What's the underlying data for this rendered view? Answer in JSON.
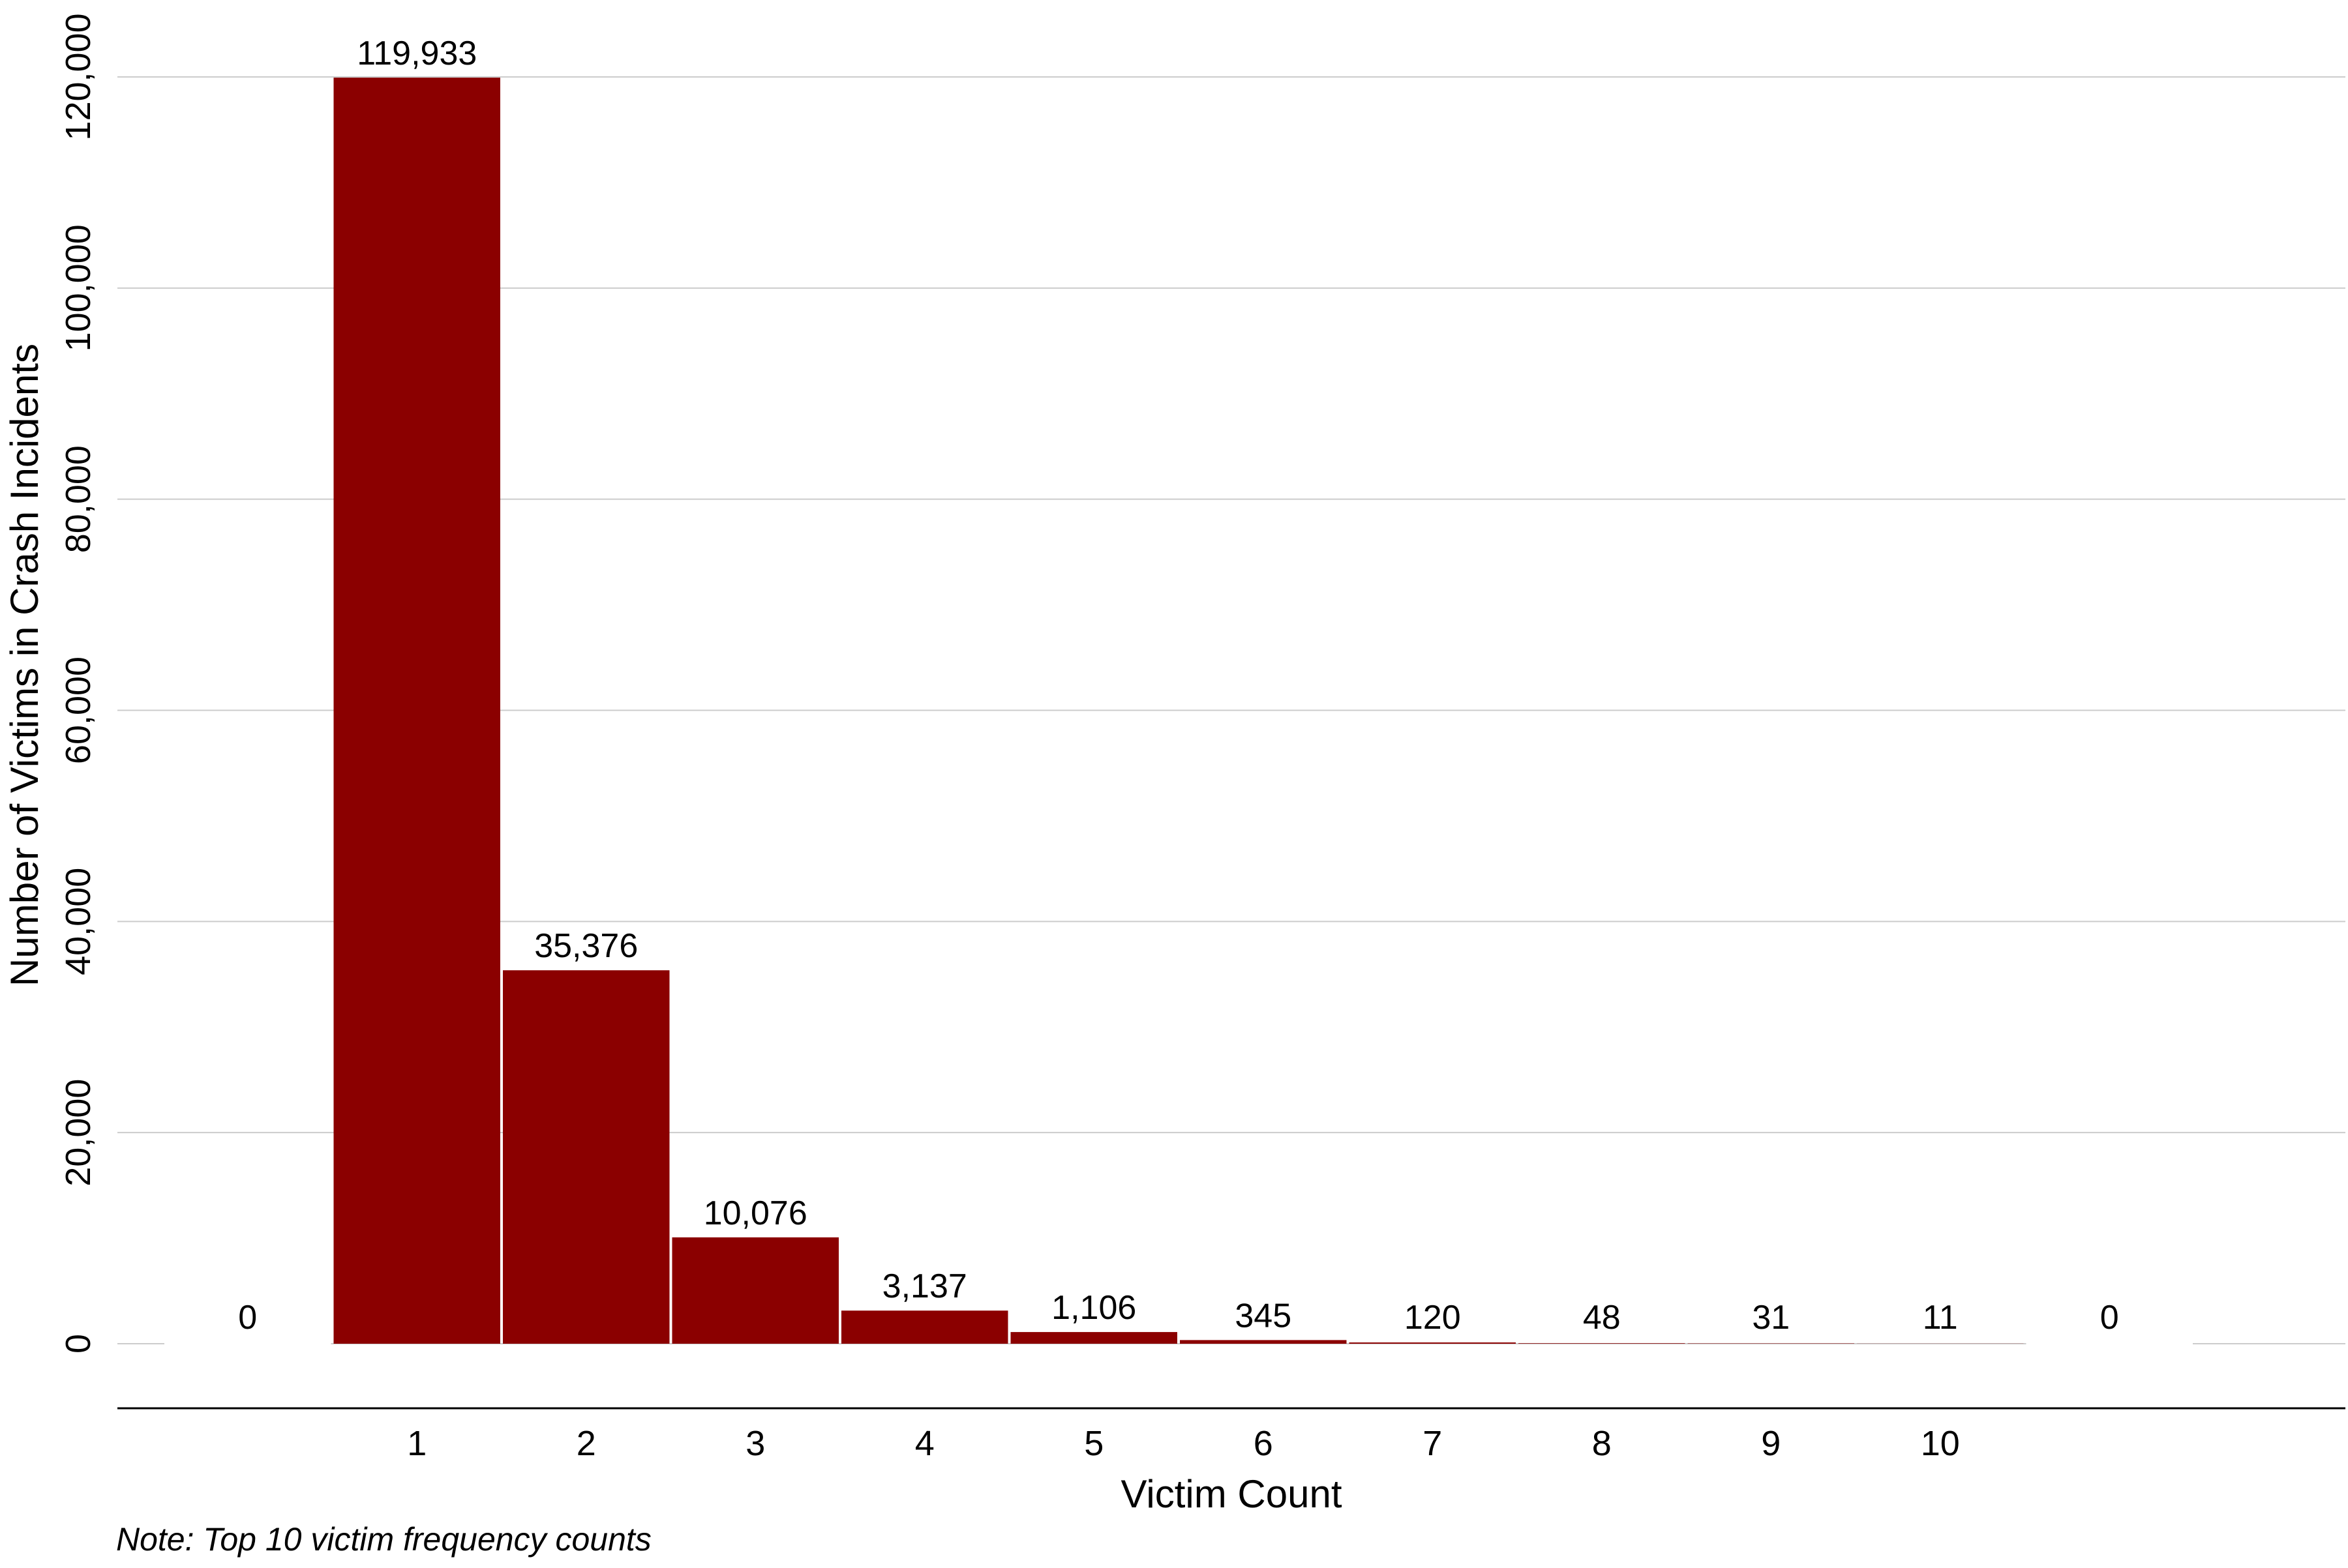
{
  "chart_data": {
    "type": "bar",
    "xlabel": "Victim Count",
    "ylabel": "Number of Victims in Crash Incidents",
    "note": "Note: Top 10 victim frequency counts",
    "ylim": [
      -6000,
      126000
    ],
    "yticks": [
      0,
      20000,
      40000,
      60000,
      80000,
      100000,
      120000
    ],
    "ytick_labels": [
      "0",
      "20,000",
      "40,000",
      "60,000",
      "80,000",
      "100,000",
      "120,000"
    ],
    "categories": [
      "",
      "1",
      "2",
      "3",
      "4",
      "5",
      "6",
      "7",
      "8",
      "9",
      "10",
      ""
    ],
    "values": [
      0,
      119933,
      35376,
      10076,
      3137,
      1106,
      345,
      120,
      48,
      31,
      11,
      0
    ],
    "data_labels": [
      "0",
      "119,933",
      "35,376",
      "10,076",
      "3,137",
      "1,106",
      "345",
      "120",
      "48",
      "31",
      "11",
      "0"
    ],
    "grid": true,
    "legend": "none",
    "bar_color": "#8B0000",
    "grid_color": "#cccccc"
  }
}
